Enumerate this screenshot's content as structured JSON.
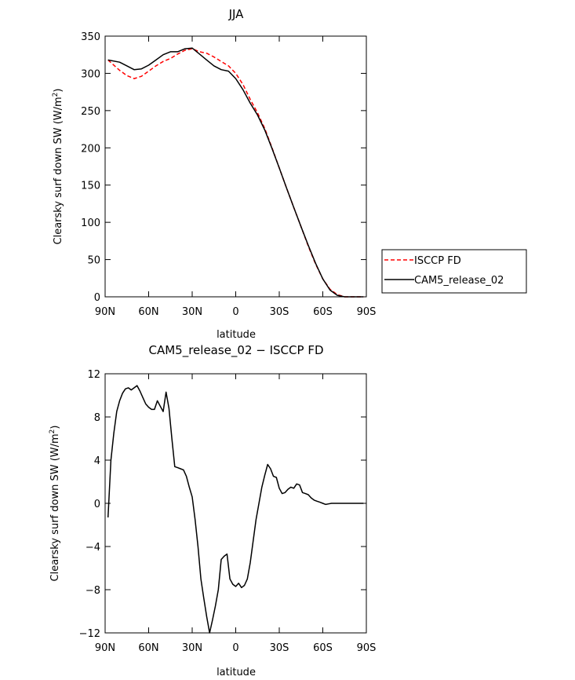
{
  "chart_data": [
    {
      "type": "line",
      "title": "JJA",
      "xlabel": "latitude",
      "ylabel": "Clearsky surf down SW (W/m",
      "ylabel_sup": "2",
      "ylabel_end": ")",
      "xlim": [
        90,
        -90
      ],
      "ylim": [
        0,
        350
      ],
      "xticks": [
        90,
        60,
        30,
        0,
        -30,
        -60,
        -90
      ],
      "xtick_labels": [
        "90N",
        "60N",
        "30N",
        "0",
        "30S",
        "60S",
        "90S"
      ],
      "yticks": [
        0,
        50,
        100,
        150,
        200,
        250,
        300,
        350
      ],
      "ytick_labels": [
        "0",
        "50",
        "100",
        "150",
        "200",
        "250",
        "300",
        "350"
      ],
      "legend": {
        "placement": "outside-right"
      },
      "series": [
        {
          "name": "ISCCP FD",
          "color": "#ff0000",
          "dash": true,
          "x": [
            88,
            80,
            75,
            70,
            65,
            60,
            55,
            50,
            45,
            40,
            35,
            30,
            25,
            20,
            15,
            10,
            5,
            0,
            -5,
            -10,
            -15,
            -20,
            -25,
            -30,
            -35,
            -40,
            -45,
            -50,
            -55,
            -60,
            -65,
            -70,
            -75,
            -80,
            -85,
            -88
          ],
          "y": [
            318,
            304,
            297,
            293,
            296,
            303,
            310,
            316,
            320,
            326,
            331,
            333,
            329,
            327,
            322,
            316,
            310,
            300,
            285,
            265,
            247,
            226,
            200,
            173,
            146,
            120,
            94,
            68,
            44,
            24,
            10,
            3,
            0,
            0,
            0,
            0
          ]
        },
        {
          "name": "CAM5_release_02",
          "color": "#000000",
          "dash": false,
          "x": [
            88,
            80,
            75,
            70,
            65,
            60,
            55,
            50,
            45,
            40,
            35,
            30,
            25,
            20,
            15,
            10,
            5,
            0,
            -5,
            -10,
            -15,
            -20,
            -25,
            -30,
            -35,
            -40,
            -45,
            -50,
            -55,
            -60,
            -65,
            -70,
            -75,
            -80,
            -85,
            -88
          ],
          "y": [
            318,
            315,
            310,
            305,
            306,
            311,
            318,
            325,
            329,
            329,
            333,
            334,
            326,
            318,
            310,
            305,
            303,
            293,
            278,
            260,
            244,
            224,
            199,
            173,
            146,
            120,
            94,
            69,
            45,
            24,
            9,
            2,
            0,
            0,
            0,
            0
          ]
        }
      ]
    },
    {
      "type": "line",
      "title": "CAM5_release_02 − ISCCP FD",
      "xlabel": "latitude",
      "ylabel": "Clearsky surf down SW (W/m",
      "ylabel_sup": "2",
      "ylabel_end": ")",
      "xlim": [
        90,
        -90
      ],
      "ylim": [
        -12,
        12
      ],
      "xticks": [
        90,
        60,
        30,
        0,
        -30,
        -60,
        -90
      ],
      "xtick_labels": [
        "90N",
        "60N",
        "30N",
        "0",
        "30S",
        "60S",
        "90S"
      ],
      "yticks": [
        -12,
        -8,
        -4,
        0,
        4,
        8,
        12
      ],
      "ytick_labels": [
        "−12",
        "−8",
        "−4",
        "0",
        "4",
        "8",
        "12"
      ],
      "series": [
        {
          "name": "CAM5_release_02 − ISCCP FD",
          "color": "#000000",
          "dash": false,
          "x": [
            88,
            86,
            84,
            82,
            80,
            78,
            76,
            74,
            72,
            70,
            68,
            66,
            64,
            62,
            60,
            58,
            56,
            54,
            52,
            50,
            48,
            46,
            44,
            42,
            40,
            38,
            36,
            34,
            32,
            30,
            28,
            26,
            24,
            22,
            20,
            18,
            16,
            14,
            12,
            10,
            8,
            6,
            4,
            2,
            0,
            -2,
            -4,
            -6,
            -8,
            -10,
            -12,
            -14,
            -16,
            -18,
            -20,
            -22,
            -24,
            -26,
            -28,
            -30,
            -32,
            -34,
            -36,
            -38,
            -40,
            -42,
            -44,
            -46,
            -48,
            -50,
            -52,
            -54,
            -56,
            -58,
            -60,
            -62,
            -64,
            -66,
            -68,
            -70,
            -72,
            -74,
            -76,
            -78,
            -80,
            -82,
            -84,
            -86,
            -88
          ],
          "y": [
            -1.3,
            4.0,
            6.5,
            8.5,
            9.5,
            10.2,
            10.6,
            10.7,
            10.5,
            10.7,
            10.9,
            10.4,
            9.8,
            9.2,
            8.9,
            8.7,
            8.7,
            9.5,
            9.0,
            8.5,
            10.3,
            8.8,
            6.0,
            3.4,
            3.3,
            3.2,
            3.1,
            2.5,
            1.5,
            0.6,
            -1.5,
            -4.0,
            -7.0,
            -8.8,
            -10.5,
            -12.0,
            -10.8,
            -9.5,
            -8.0,
            -5.2,
            -4.9,
            -4.7,
            -7.0,
            -7.5,
            -7.7,
            -7.4,
            -7.8,
            -7.6,
            -7.0,
            -5.5,
            -3.5,
            -1.5,
            0.0,
            1.5,
            2.6,
            3.6,
            3.2,
            2.5,
            2.4,
            1.4,
            0.9,
            1.0,
            1.3,
            1.5,
            1.4,
            1.8,
            1.7,
            1.0,
            0.9,
            0.8,
            0.5,
            0.3,
            0.2,
            0.1,
            0.0,
            -0.1,
            -0.05,
            0.0,
            0.0,
            0.0,
            0.0,
            0.0,
            0.0,
            0.0,
            0.0,
            0.0,
            0.0,
            0.0,
            0.0
          ]
        }
      ]
    }
  ]
}
